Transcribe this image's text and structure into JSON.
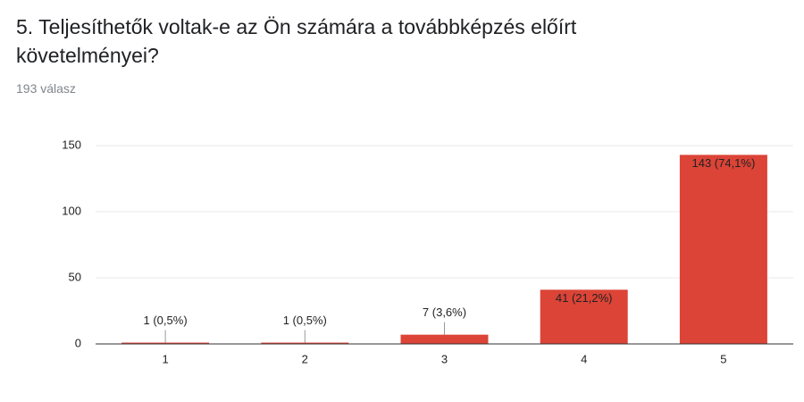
{
  "chart_data": {
    "type": "bar",
    "title": "5. Teljesíthetők voltak-e az Ön számára a továbbképzés előírt követelményei?",
    "subtitle": "193 válasz",
    "categories": [
      "1",
      "2",
      "3",
      "4",
      "5"
    ],
    "values": [
      1,
      1,
      7,
      41,
      143
    ],
    "value_labels": [
      "1 (0,5%)",
      "1 (0,5%)",
      "7 (3,6%)",
      "41 (21,2%)",
      "143 (74,1%)"
    ],
    "color": "#db4437",
    "ylim": [
      0,
      150
    ],
    "yticks": [
      0,
      50,
      100,
      150
    ],
    "grid": true
  }
}
